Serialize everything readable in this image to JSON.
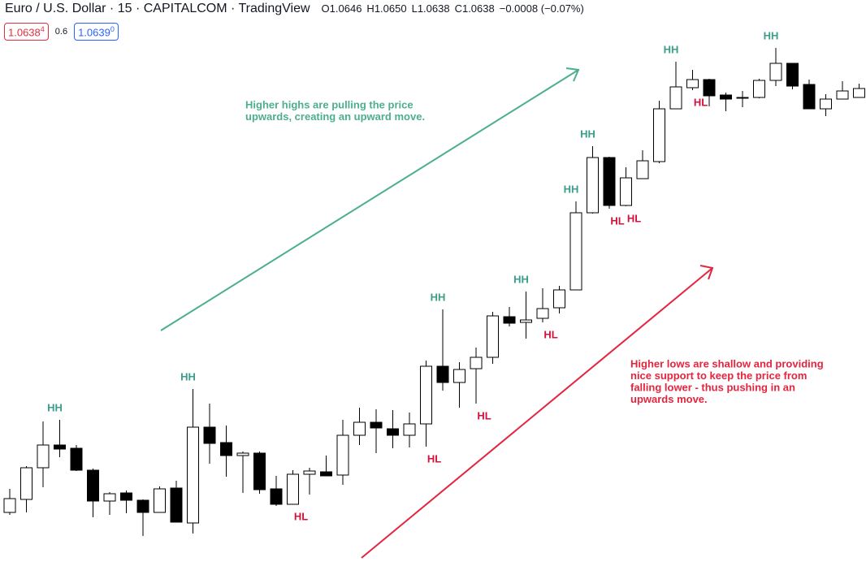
{
  "header": {
    "symbol": "Euro / U.S. Dollar · 15 · CAPITALCOM · TradingView",
    "ohlc": [
      {
        "key": "O",
        "value": "1.0646"
      },
      {
        "key": "H",
        "value": "1.0650"
      },
      {
        "key": "L",
        "value": "1.0638"
      },
      {
        "key": "C",
        "value": "1.0638"
      }
    ],
    "change": "−0.0008 (−0.07%)",
    "bid": "1.0638",
    "bid_frac": "4",
    "spread": "0.6",
    "ask": "1.0639",
    "ask_frac": "0"
  },
  "chart_data": {
    "type": "candlestick",
    "open": [
      1.05869,
      1.05885,
      1.05924,
      1.05952,
      1.05948,
      1.05921,
      1.05883,
      1.05893,
      1.05884,
      1.05869,
      1.05899,
      1.05856,
      1.05974,
      1.05955,
      1.05939,
      1.05942,
      1.05898,
      1.05879,
      1.05916,
      1.05919,
      1.05915,
      1.05964,
      1.0598,
      1.05972,
      1.05964,
      1.05978,
      1.06049,
      1.06029,
      1.06046,
      1.0606,
      1.0611,
      1.06103,
      1.06108,
      1.06121,
      1.06143,
      1.06238,
      1.06306,
      1.06247,
      1.0628,
      1.06301,
      1.06366,
      1.06392,
      1.06402,
      1.06383,
      1.06379,
      1.0638,
      1.06401,
      1.06422,
      1.06396,
      1.06366,
      1.06378,
      1.0638
    ],
    "high": [
      1.05898,
      1.05926,
      1.05981,
      1.05983,
      1.05952,
      1.05923,
      1.05894,
      1.05896,
      1.05885,
      1.05901,
      1.05908,
      1.06021,
      1.06003,
      1.05976,
      1.05944,
      1.05944,
      1.05914,
      1.05921,
      1.05924,
      1.05939,
      1.05983,
      1.05998,
      1.05996,
      1.05995,
      1.05992,
      1.06056,
      1.06119,
      1.06054,
      1.06072,
      1.06116,
      1.06122,
      1.06141,
      1.06145,
      1.06148,
      1.06252,
      1.0632,
      1.06307,
      1.06294,
      1.06315,
      1.06376,
      1.06424,
      1.06414,
      1.06403,
      1.06386,
      1.06388,
      1.06403,
      1.06441,
      1.06422,
      1.06402,
      1.06384,
      1.064,
      1.06397
    ],
    "low": [
      1.05866,
      1.05869,
      1.059,
      1.05937,
      1.0592,
      1.05863,
      1.05866,
      1.05868,
      1.0584,
      1.05869,
      1.05857,
      1.05843,
      1.05929,
      1.05913,
      1.05893,
      1.05892,
      1.05877,
      1.05879,
      1.05891,
      1.05914,
      1.05903,
      1.05952,
      1.05942,
      1.05948,
      1.05949,
      1.0595,
      1.06019,
      1.05998,
      1.06003,
      1.06052,
      1.06098,
      1.06083,
      1.06103,
      1.06114,
      1.06143,
      1.06237,
      1.06243,
      1.06246,
      1.0628,
      1.06299,
      1.06366,
      1.06389,
      1.06369,
      1.06363,
      1.06368,
      1.06379,
      1.06394,
      1.0639,
      1.06366,
      1.06357,
      1.06378,
      1.0638
    ],
    "close": [
      1.05886,
      1.05924,
      1.05952,
      1.05947,
      1.05921,
      1.05883,
      1.05892,
      1.05884,
      1.05869,
      1.05898,
      1.05857,
      1.05974,
      1.05954,
      1.05939,
      1.05942,
      1.05897,
      1.05879,
      1.05916,
      1.0592,
      1.05914,
      1.05964,
      1.0598,
      1.05973,
      1.05964,
      1.05978,
      1.06049,
      1.06029,
      1.06045,
      1.0606,
      1.06111,
      1.06102,
      1.06106,
      1.0612,
      1.06143,
      1.06238,
      1.06306,
      1.06247,
      1.06281,
      1.06302,
      1.06366,
      1.06393,
      1.06402,
      1.06382,
      1.06378,
      1.0638,
      1.06401,
      1.06422,
      1.06394,
      1.06366,
      1.06378,
      1.06388,
      1.06391
    ],
    "ylim": [
      1.05787,
      1.065
    ],
    "up_color": "#ffffff",
    "down_color": "#000000",
    "labels": [
      {
        "text": "HH",
        "candle": 3,
        "at": "high"
      },
      {
        "text": "HH",
        "candle": 11,
        "at": "high"
      },
      {
        "text": "HH",
        "candle": 26,
        "at": "high"
      },
      {
        "text": "HH",
        "candle": 31,
        "at": "high"
      },
      {
        "text": "HH",
        "candle": 34,
        "at": "high"
      },
      {
        "text": "HH",
        "candle": 35,
        "at": "high"
      },
      {
        "text": "HH",
        "candle": 40,
        "at": "high"
      },
      {
        "text": "HH",
        "candle": 46,
        "at": "high"
      },
      {
        "text": "HL",
        "candle": 17,
        "at": "low"
      },
      {
        "text": "HL",
        "candle": 25,
        "at": "low"
      },
      {
        "text": "HL",
        "candle": 28,
        "at": "low"
      },
      {
        "text": "HL",
        "candle": 32,
        "at": "low"
      },
      {
        "text": "HL",
        "candle": 36,
        "at": "low"
      },
      {
        "text": "HL",
        "candle": 37,
        "at": "low"
      },
      {
        "text": "HL",
        "candle": 41,
        "at": "low"
      }
    ],
    "high_label_color": "#3a9e8a",
    "low_label_color": "#d3123d",
    "notes": [
      {
        "lines": [
          "Higher highs are pulling the price",
          "upwards, creating an upward move."
        ],
        "color": "#4caf8c"
      },
      {
        "lines": [
          "Higher lows are shallow and providing",
          "nice support to keep the price from",
          "falling lower - thus pushing in an",
          "upwards move."
        ],
        "color": "#e3253f"
      }
    ]
  }
}
